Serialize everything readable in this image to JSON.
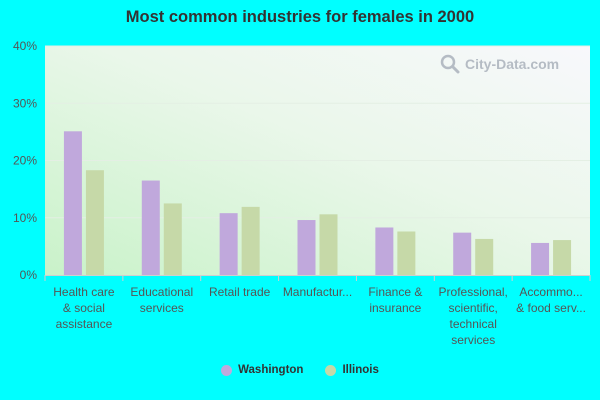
{
  "chart_data": {
    "type": "bar",
    "title": "Most common industries for females in 2000",
    "xlabel": "",
    "ylabel": "",
    "ylim": [
      0,
      40
    ],
    "y_ticks": [
      "0%",
      "10%",
      "20%",
      "30%",
      "40%"
    ],
    "grid": true,
    "legend_position": "bottom",
    "categories": [
      [
        "Health care",
        "& social",
        "assistance"
      ],
      [
        "Educational",
        "services"
      ],
      [
        "Retail trade"
      ],
      [
        "Manufactur..."
      ],
      [
        "Finance &",
        "insurance"
      ],
      [
        "Professional,",
        "scientific,",
        "technical",
        "services"
      ],
      [
        "Accommo...",
        "& food serv..."
      ]
    ],
    "series": [
      {
        "name": "Washington",
        "color": "#c0a8dc",
        "values": [
          25.1,
          16.5,
          10.8,
          9.6,
          8.3,
          7.4,
          5.6
        ]
      },
      {
        "name": "Illinois",
        "color": "#c6d9a8",
        "values": [
          18.3,
          12.5,
          11.9,
          10.6,
          7.6,
          6.3,
          6.1
        ]
      }
    ]
  },
  "watermark": {
    "text": "City-Data.com",
    "icon": "magnifier-icon"
  }
}
